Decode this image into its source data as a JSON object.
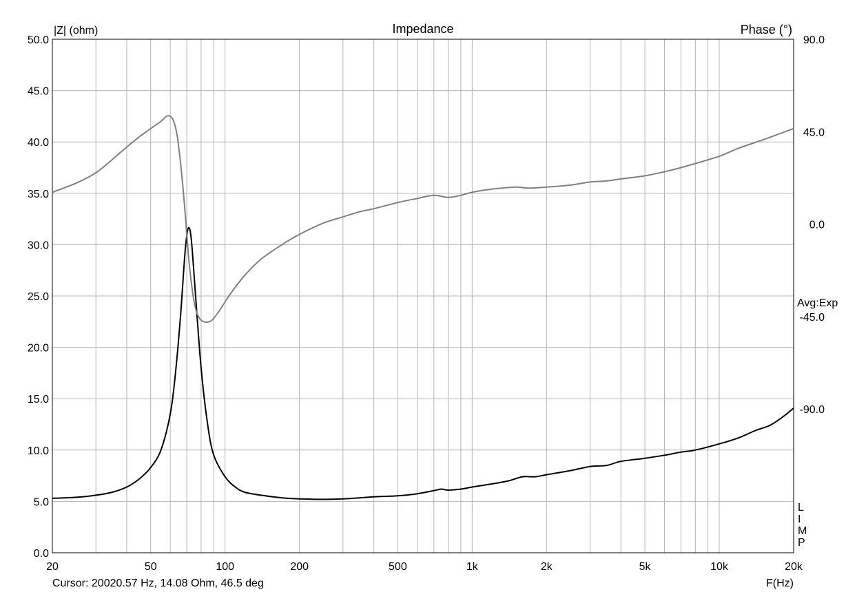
{
  "chart_data": {
    "type": "line",
    "title": "Impedance",
    "left_axis_label": "|Z| (ohm)",
    "right_axis_label": "Phase (°)",
    "x_axis_label": "F(Hz)",
    "x_scale": "log",
    "xlim": [
      20,
      20000
    ],
    "ylim_left": [
      0,
      50
    ],
    "ylim_right": [
      -160,
      90
    ],
    "grid": true,
    "x_ticks": [
      {
        "value": 20,
        "label": "20"
      },
      {
        "value": 50,
        "label": "50"
      },
      {
        "value": 100,
        "label": "100"
      },
      {
        "value": 200,
        "label": "200"
      },
      {
        "value": 500,
        "label": "500"
      },
      {
        "value": 1000,
        "label": "1k"
      },
      {
        "value": 2000,
        "label": "2k"
      },
      {
        "value": 5000,
        "label": "5k"
      },
      {
        "value": 10000,
        "label": "10k"
      },
      {
        "value": 20000,
        "label": "20k"
      }
    ],
    "y_ticks_left": [
      "0.0",
      "5.0",
      "10.0",
      "15.0",
      "20.0",
      "25.0",
      "30.0",
      "35.0",
      "40.0",
      "45.0",
      "50.0"
    ],
    "y_ticks_right": [
      {
        "value": 90,
        "label": "90.0"
      },
      {
        "value": 45,
        "label": "45.0"
      },
      {
        "value": 0,
        "label": "0.0"
      },
      {
        "value": -45,
        "label": "-45.0"
      },
      {
        "value": -90,
        "label": "-90.0"
      }
    ],
    "series": [
      {
        "axis": "left",
        "color": "#000000",
        "points": [
          [
            20,
            5.3
          ],
          [
            25,
            5.4
          ],
          [
            30,
            5.6
          ],
          [
            35,
            5.9
          ],
          [
            40,
            6.4
          ],
          [
            45,
            7.2
          ],
          [
            50,
            8.3
          ],
          [
            55,
            10.0
          ],
          [
            60,
            13.5
          ],
          [
            63,
            17.5
          ],
          [
            66,
            23.0
          ],
          [
            69,
            29.5
          ],
          [
            71,
            31.6
          ],
          [
            73,
            30.5
          ],
          [
            76,
            25.0
          ],
          [
            80,
            18.0
          ],
          [
            85,
            12.5
          ],
          [
            90,
            9.5
          ],
          [
            100,
            7.4
          ],
          [
            110,
            6.4
          ],
          [
            120,
            5.9
          ],
          [
            140,
            5.6
          ],
          [
            170,
            5.35
          ],
          [
            200,
            5.25
          ],
          [
            250,
            5.2
          ],
          [
            300,
            5.25
          ],
          [
            350,
            5.35
          ],
          [
            400,
            5.45
          ],
          [
            500,
            5.55
          ],
          [
            600,
            5.75
          ],
          [
            700,
            6.05
          ],
          [
            750,
            6.2
          ],
          [
            800,
            6.1
          ],
          [
            900,
            6.2
          ],
          [
            1000,
            6.4
          ],
          [
            1200,
            6.7
          ],
          [
            1400,
            7.0
          ],
          [
            1600,
            7.4
          ],
          [
            1800,
            7.4
          ],
          [
            2000,
            7.6
          ],
          [
            2500,
            8.0
          ],
          [
            3000,
            8.4
          ],
          [
            3500,
            8.5
          ],
          [
            4000,
            8.9
          ],
          [
            5000,
            9.2
          ],
          [
            6000,
            9.5
          ],
          [
            7000,
            9.8
          ],
          [
            8000,
            10.0
          ],
          [
            10000,
            10.6
          ],
          [
            12000,
            11.2
          ],
          [
            14000,
            11.9
          ],
          [
            16000,
            12.4
          ],
          [
            18000,
            13.2
          ],
          [
            20000,
            14.08
          ]
        ]
      },
      {
        "axis": "right",
        "color": "#808080",
        "points": [
          [
            20,
            15.5
          ],
          [
            25,
            20.0
          ],
          [
            30,
            25.0
          ],
          [
            35,
            31.5
          ],
          [
            40,
            37.5
          ],
          [
            45,
            42.5
          ],
          [
            50,
            46.5
          ],
          [
            55,
            50.0
          ],
          [
            58,
            52.5
          ],
          [
            60,
            52.5
          ],
          [
            62,
            50.0
          ],
          [
            64,
            43.0
          ],
          [
            66,
            30.0
          ],
          [
            68,
            14.0
          ],
          [
            70,
            -5.0
          ],
          [
            72,
            -22.0
          ],
          [
            75,
            -38.0
          ],
          [
            78,
            -45.0
          ],
          [
            82,
            -47.5
          ],
          [
            88,
            -47.0
          ],
          [
            95,
            -42.0
          ],
          [
            105,
            -34.0
          ],
          [
            120,
            -25.0
          ],
          [
            140,
            -17.0
          ],
          [
            170,
            -10.0
          ],
          [
            200,
            -5.0
          ],
          [
            250,
            0.5
          ],
          [
            300,
            3.5
          ],
          [
            350,
            6.0
          ],
          [
            400,
            7.5
          ],
          [
            500,
            10.5
          ],
          [
            600,
            12.5
          ],
          [
            700,
            14.0
          ],
          [
            800,
            13.0
          ],
          [
            900,
            14.0
          ],
          [
            1000,
            15.5
          ],
          [
            1200,
            17.0
          ],
          [
            1500,
            18.0
          ],
          [
            1700,
            17.5
          ],
          [
            2000,
            18.0
          ],
          [
            2500,
            19.0
          ],
          [
            3000,
            20.5
          ],
          [
            3500,
            21.0
          ],
          [
            4000,
            22.0
          ],
          [
            5000,
            23.5
          ],
          [
            6000,
            25.5
          ],
          [
            7000,
            27.5
          ],
          [
            8000,
            29.5
          ],
          [
            10000,
            33.0
          ],
          [
            12000,
            37.0
          ],
          [
            15000,
            41.0
          ],
          [
            18000,
            44.5
          ],
          [
            20000,
            46.5
          ]
        ]
      }
    ],
    "right_annotation": "Avg:Exp",
    "side_letters": [
      "L",
      "I",
      "M",
      "P"
    ],
    "cursor_readout": "Cursor: 20020.57 Hz, 14.08 Ohm, 46.5 deg"
  }
}
